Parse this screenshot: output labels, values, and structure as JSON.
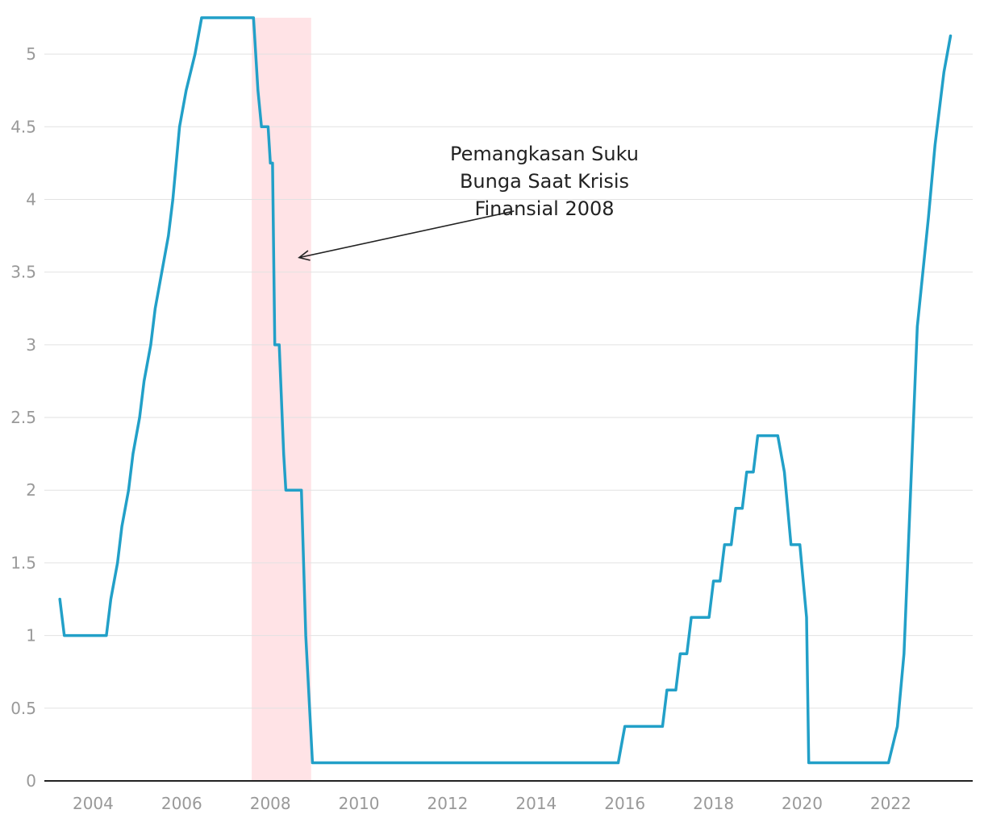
{
  "chart_data": {
    "type": "line",
    "title": "",
    "xlabel": "",
    "ylabel": "",
    "xlim": [
      2002.9,
      2023.85
    ],
    "ylim": [
      0,
      5.25
    ],
    "grid": true,
    "line_color": "#22a0c8",
    "shade_color": "#ffe3e6",
    "y_ticks": [
      0,
      0.5,
      1,
      1.5,
      2,
      2.5,
      3,
      3.5,
      4,
      4.5,
      5
    ],
    "y_tick_labels": [
      "0",
      "0.5",
      "1",
      "1.5",
      "2",
      "2.5",
      "3",
      "3.5",
      "4",
      "4.5",
      "5"
    ],
    "x_ticks": [
      2004,
      2006,
      2008,
      2010,
      2012,
      2014,
      2016,
      2018,
      2020,
      2022
    ],
    "x_tick_labels": [
      "2004",
      "2006",
      "2008",
      "2010",
      "2012",
      "2014",
      "2016",
      "2018",
      "2020",
      "2022"
    ],
    "shaded_region": {
      "from": 2007.58,
      "to": 2008.92
    },
    "annotation": {
      "lines": [
        "Pemangkasan Suku",
        "Bunga Saat Krisis",
        "Finansial 2008"
      ],
      "text_x": 2008.5,
      "text_y": 4.05,
      "arrow_from": [
        2013.5,
        3.92
      ],
      "arrow_to": [
        2008.65,
        3.6
      ]
    },
    "series": [
      {
        "x": [
          2003.25,
          2003.35,
          2004.3,
          2004.4,
          2004.55,
          2004.65,
          2004.8,
          2004.9,
          2005.05,
          2005.15,
          2005.3,
          2005.4,
          2005.55,
          2005.7,
          2005.8,
          2005.95,
          2006.1,
          2006.3,
          2006.45,
          2007.62,
          2007.72,
          2007.8,
          2007.95,
          2008.0,
          2008.05,
          2008.1,
          2008.2,
          2008.3,
          2008.35,
          2008.42,
          2008.55,
          2008.7,
          2008.75,
          2008.8,
          2008.95,
          2015.85,
          2016.0,
          2016.85,
          2016.95,
          2017.15,
          2017.25,
          2017.4,
          2017.5,
          2017.9,
          2018.0,
          2018.15,
          2018.25,
          2018.4,
          2018.5,
          2018.65,
          2018.75,
          2018.9,
          2019.0,
          2019.45,
          2019.6,
          2019.75,
          2019.95,
          2020.1,
          2020.15,
          2021.95,
          2022.15,
          2022.3,
          2022.4,
          2022.5,
          2022.6,
          2022.85,
          2023.0,
          2023.1,
          2023.2,
          2023.35
        ],
        "values": [
          1.25,
          1.0,
          1.0,
          1.25,
          1.5,
          1.75,
          2.0,
          2.25,
          2.5,
          2.75,
          3.0,
          3.25,
          3.5,
          3.75,
          4.0,
          4.5,
          4.75,
          5.0,
          5.25,
          5.25,
          4.75,
          4.5,
          4.5,
          4.25,
          4.25,
          3.0,
          3.0,
          2.25,
          2.0,
          2.0,
          2.0,
          2.0,
          1.5,
          1.0,
          0.125,
          0.125,
          0.375,
          0.375,
          0.625,
          0.625,
          0.875,
          0.875,
          1.125,
          1.125,
          1.375,
          1.375,
          1.625,
          1.625,
          1.875,
          1.875,
          2.125,
          2.125,
          2.375,
          2.375,
          2.125,
          1.625,
          1.625,
          1.125,
          0.125,
          0.125,
          0.375,
          0.875,
          1.625,
          2.375,
          3.125,
          3.875,
          4.375,
          4.625,
          4.875,
          5.125
        ]
      }
    ]
  }
}
